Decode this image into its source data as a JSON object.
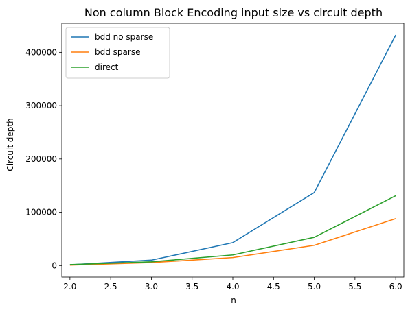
{
  "chart_data": {
    "type": "line",
    "title": "Non column Block Encoding input size vs circuit depth",
    "xlabel": "n",
    "ylabel": "Circuit depth",
    "x": [
      2.0,
      3.0,
      4.0,
      5.0,
      6.0
    ],
    "xlim": [
      1.9,
      6.1
    ],
    "ylim": [
      -21500,
      454500
    ],
    "xticks": [
      2.0,
      2.5,
      3.0,
      3.5,
      4.0,
      4.5,
      5.0,
      5.5,
      6.0
    ],
    "xtick_labels": [
      "2.0",
      "2.5",
      "3.0",
      "3.5",
      "4.0",
      "4.5",
      "5.0",
      "5.5",
      "6.0"
    ],
    "yticks": [
      0,
      100000,
      200000,
      300000,
      400000
    ],
    "ytick_labels": [
      "0",
      "100000",
      "200000",
      "300000",
      "400000"
    ],
    "grid": false,
    "legend_position": "top-left",
    "series": [
      {
        "name": "bdd no sparse",
        "color": "#1f77b4",
        "values": [
          1500,
          10200,
          43000,
          137000,
          432500
        ]
      },
      {
        "name": "bdd sparse",
        "color": "#ff7f0e",
        "values": [
          800,
          5500,
          15000,
          38000,
          88000
        ]
      },
      {
        "name": "direct",
        "color": "#2ca02c",
        "values": [
          1800,
          7000,
          20000,
          53000,
          131000
        ]
      }
    ]
  }
}
